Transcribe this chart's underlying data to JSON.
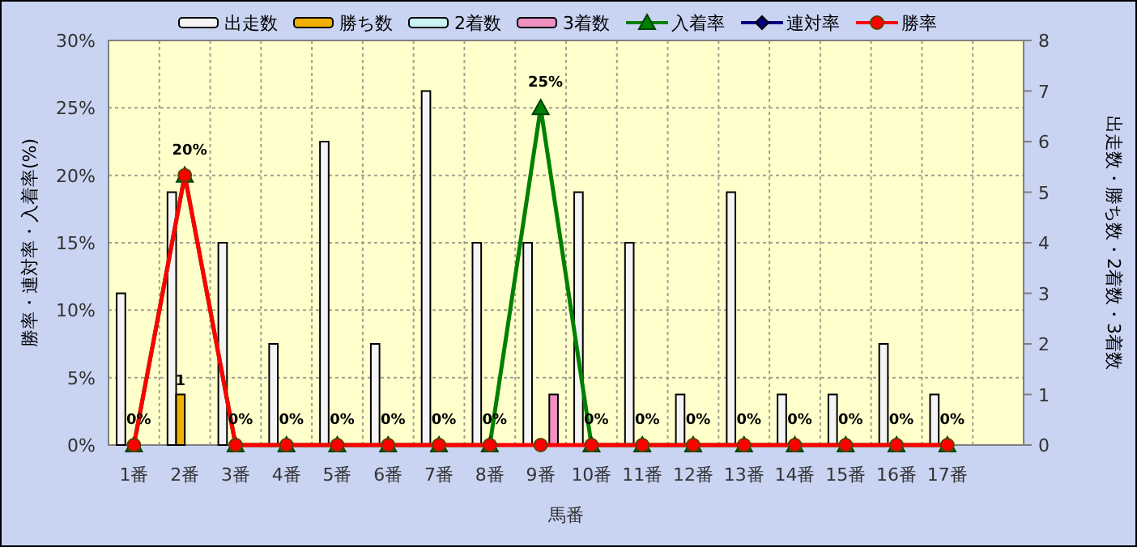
{
  "chart_data": {
    "type": "bar",
    "xlabel": "馬番",
    "ylabel": "勝率・連対率・入着率(%)",
    "y2label": "出走数・勝ち数・2着数・3着数",
    "legend": "top",
    "grid": true,
    "categories": [
      "1番",
      "2番",
      "3番",
      "4番",
      "5番",
      "6番",
      "7番",
      "8番",
      "9番",
      "10番",
      "11番",
      "12番",
      "13番",
      "14番",
      "15番",
      "16番",
      "17番",
      null
    ],
    "ylim": [
      0,
      30
    ],
    "yticks": [
      {
        "value": 0,
        "label": "0%"
      },
      {
        "value": 5,
        "label": "5%"
      },
      {
        "value": 10,
        "label": "10%"
      },
      {
        "value": 15,
        "label": "15%"
      },
      {
        "value": 20,
        "label": "20%"
      },
      {
        "value": 25,
        "label": "25%"
      },
      {
        "value": 30,
        "label": "30%"
      }
    ],
    "y2lim": [
      0,
      8
    ],
    "y2ticks": [
      0,
      1,
      2,
      3,
      4,
      5,
      6,
      7,
      8
    ],
    "series": [
      {
        "name": "出走数",
        "axis": "y2",
        "color": "#f4f4f4",
        "values": [
          3,
          5,
          4,
          2,
          6,
          2,
          7,
          4,
          4,
          5,
          4,
          1,
          5,
          1,
          1,
          2,
          1,
          null
        ]
      },
      {
        "name": "勝ち数",
        "axis": "y2",
        "color": "#f0b000",
        "values": [
          0,
          1,
          0,
          0,
          0,
          0,
          0,
          0,
          0,
          0,
          0,
          0,
          0,
          0,
          0,
          0,
          0,
          null
        ],
        "value_labels": [
          null,
          "1",
          null,
          null,
          null,
          null,
          null,
          null,
          null,
          null,
          null,
          null,
          null,
          null,
          null,
          null,
          null,
          null
        ]
      },
      {
        "name": "2着数",
        "axis": "y2",
        "color": "#c8f4f4",
        "values": [
          0,
          0,
          0,
          0,
          0,
          0,
          0,
          0,
          0,
          0,
          0,
          0,
          0,
          0,
          0,
          0,
          0,
          null
        ]
      },
      {
        "name": "3着数",
        "axis": "y2",
        "color": "#f090c0",
        "values": [
          0,
          0,
          0,
          0,
          0,
          0,
          0,
          0,
          1,
          0,
          0,
          0,
          0,
          0,
          0,
          0,
          0,
          null
        ]
      },
      {
        "name": "入着率",
        "type": "line",
        "color": "#008000",
        "marker": "triangle",
        "values": [
          0,
          20,
          0,
          0,
          0,
          0,
          0,
          0,
          25,
          0,
          0,
          0,
          0,
          0,
          0,
          0,
          0,
          null
        ],
        "value_labels": [
          "0%",
          "20%",
          "0%",
          "0%",
          "0%",
          "0%",
          "0%",
          "0%",
          "25%",
          "0%",
          "0%",
          "0%",
          "0%",
          "0%",
          "0%",
          "0%",
          "0%",
          null
        ]
      },
      {
        "name": "連対率",
        "type": "line",
        "color": "#000080",
        "marker": "diamond",
        "values": [
          null,
          null,
          null,
          null,
          null,
          null,
          null,
          null,
          null,
          null,
          null,
          null,
          null,
          null,
          null,
          null,
          null,
          null
        ]
      },
      {
        "name": "勝率",
        "type": "line",
        "color": "#ff0000",
        "marker": "circle",
        "values": [
          0,
          20,
          0,
          0,
          0,
          0,
          0,
          0,
          0,
          0,
          0,
          0,
          0,
          0,
          0,
          0,
          0,
          null
        ]
      }
    ]
  }
}
